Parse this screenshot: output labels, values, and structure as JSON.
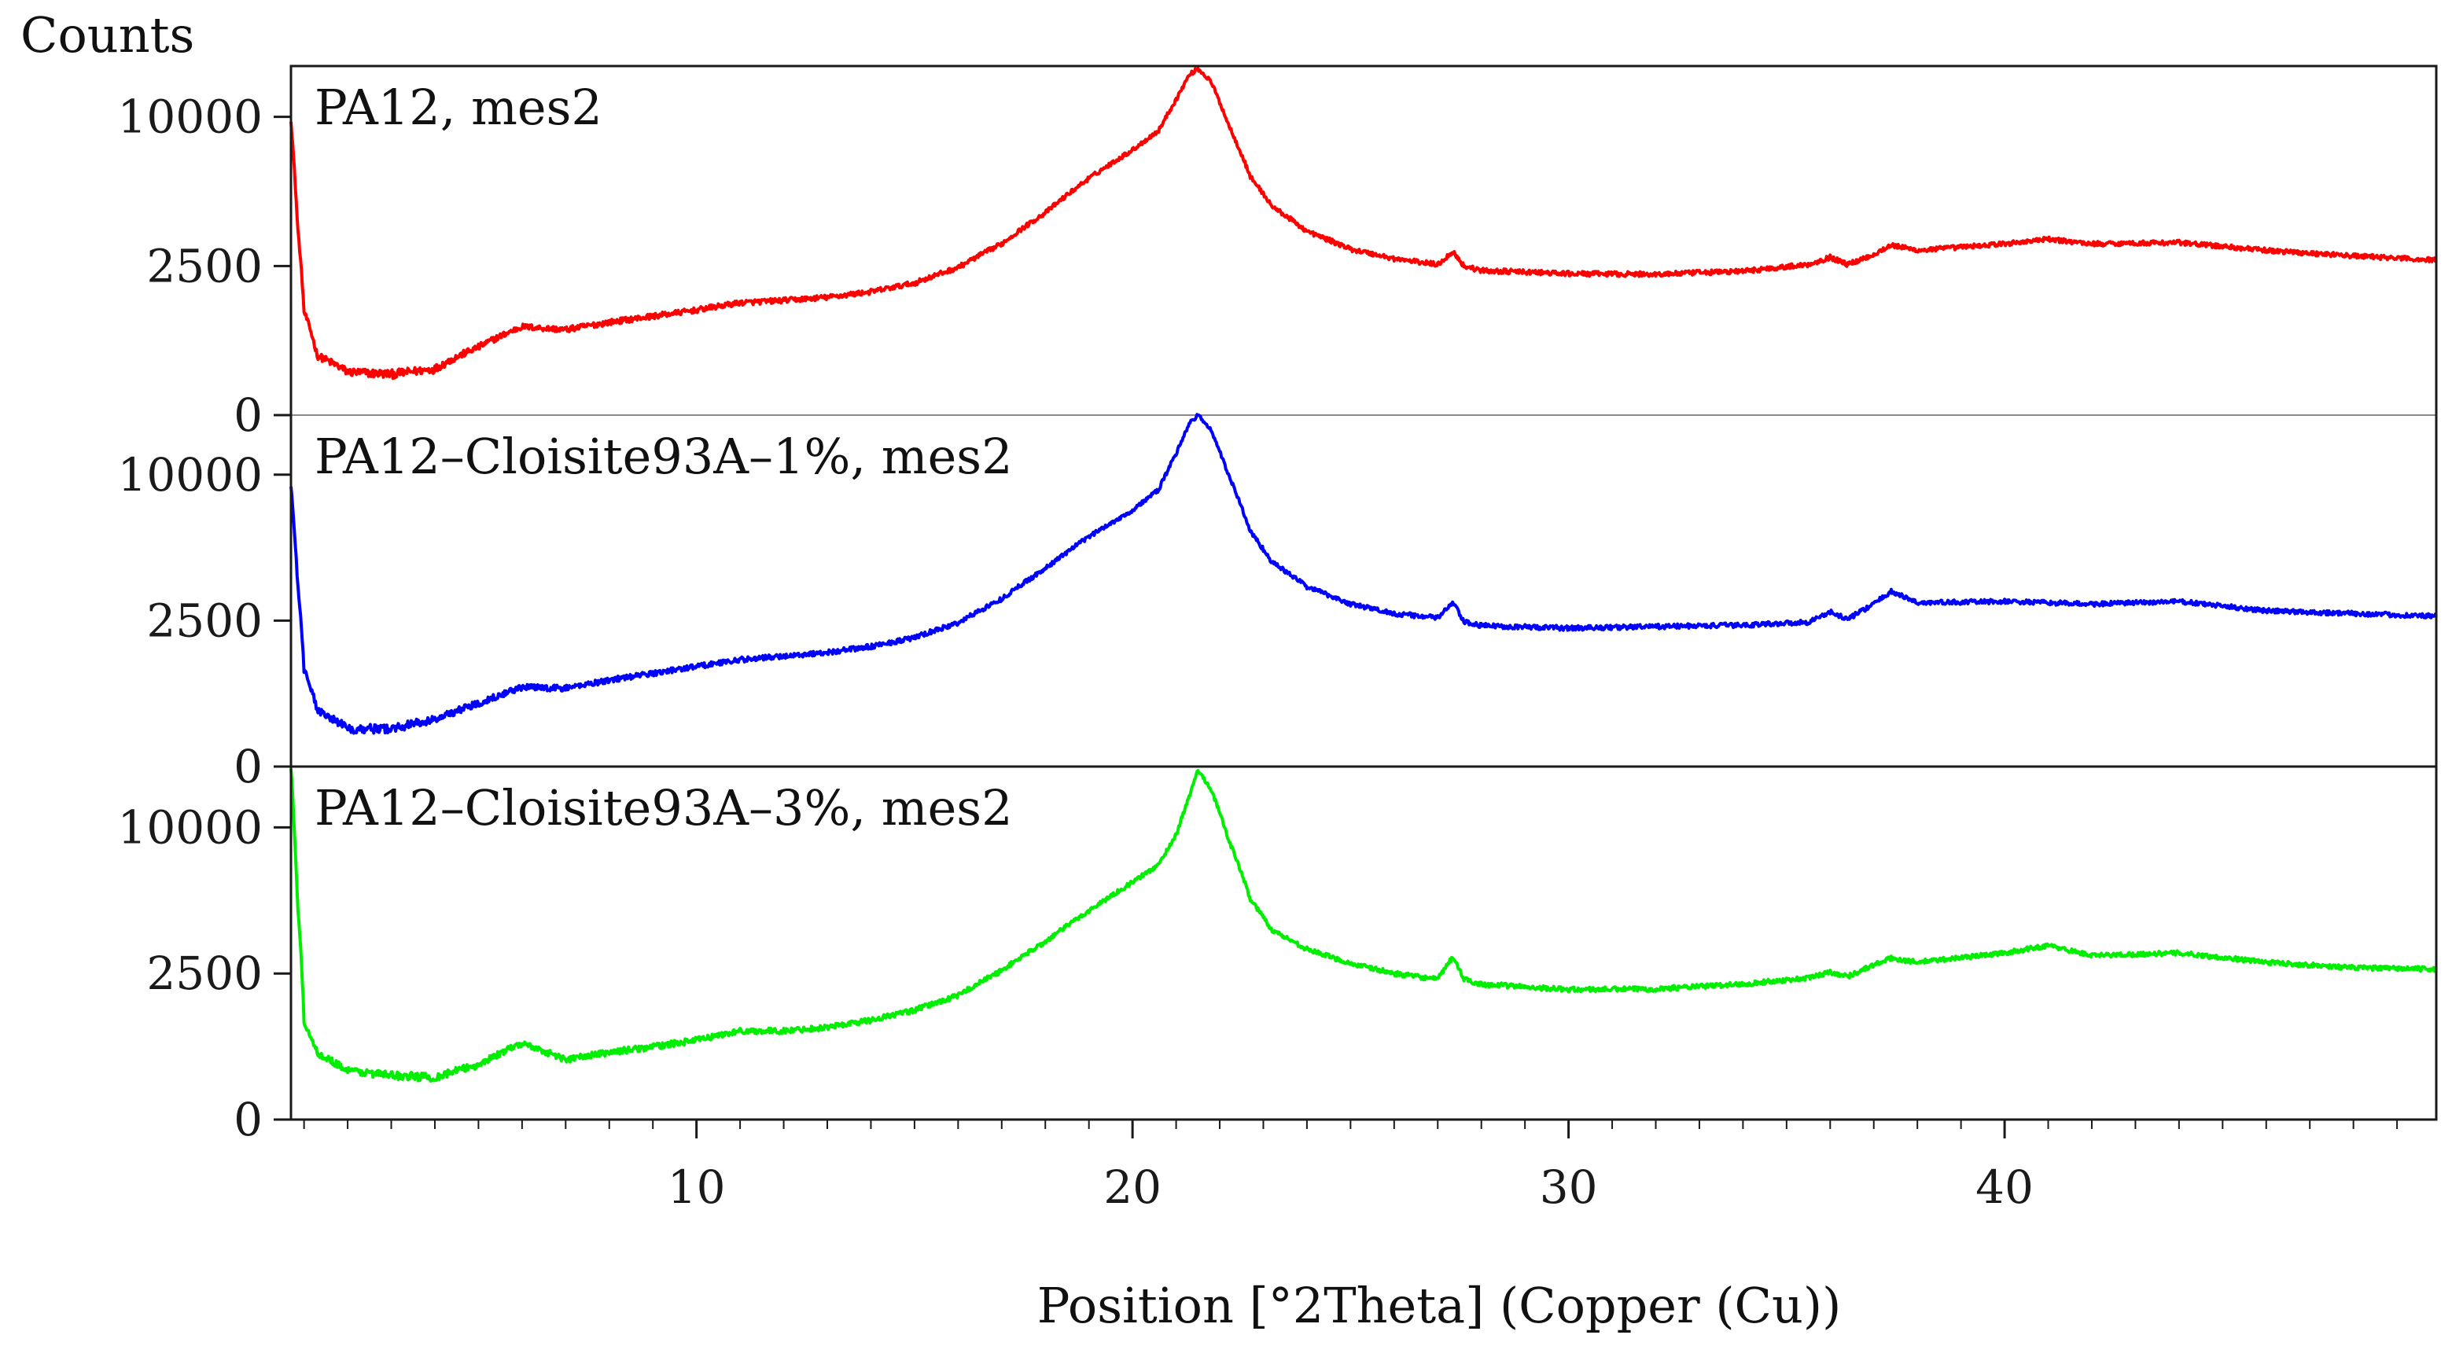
{
  "chart_data": {
    "type": "line",
    "y_axis_title": "Counts",
    "x_axis_title": "Position [°2Theta] (Copper (Cu))",
    "x_range": [
      0.7,
      49.9
    ],
    "x_ticks": [
      10,
      20,
      30,
      40
    ],
    "x_tick_labels": [
      "10",
      "20",
      "30",
      "40"
    ],
    "grid": false,
    "y_scale": "square-root",
    "panels": [
      {
        "label": "PA12, mes2",
        "color": "#ff0000",
        "y_range": [
          0,
          13700
        ],
        "y_ticks": [
          0,
          2500,
          10000
        ],
        "y_tick_labels": [
          "0",
          "2500",
          "10000"
        ],
        "profile": [
          [
            0.7,
            9800
          ],
          [
            0.85,
            4000
          ],
          [
            1.0,
            1200
          ],
          [
            1.3,
            400
          ],
          [
            2.0,
            210
          ],
          [
            3.0,
            190
          ],
          [
            4.0,
            240
          ],
          [
            5.0,
            520
          ],
          [
            6.0,
            880
          ],
          [
            7.0,
            820
          ],
          [
            8.0,
            970
          ],
          [
            9.0,
            1100
          ],
          [
            10.0,
            1240
          ],
          [
            11.0,
            1420
          ],
          [
            12.0,
            1480
          ],
          [
            13.0,
            1560
          ],
          [
            14.0,
            1710
          ],
          [
            15.0,
            1960
          ],
          [
            16.0,
            2450
          ],
          [
            17.0,
            3300
          ],
          [
            18.0,
            4600
          ],
          [
            19.0,
            6300
          ],
          [
            20.0,
            7900
          ],
          [
            20.6,
            9100
          ],
          [
            21.0,
            11200
          ],
          [
            21.3,
            13000
          ],
          [
            21.5,
            13500
          ],
          [
            21.8,
            12500
          ],
          [
            22.2,
            9500
          ],
          [
            22.7,
            6400
          ],
          [
            23.2,
            4900
          ],
          [
            24.0,
            3800
          ],
          [
            25.0,
            3100
          ],
          [
            26.0,
            2750
          ],
          [
            27.0,
            2550
          ],
          [
            27.35,
            3000
          ],
          [
            27.6,
            2500
          ],
          [
            28.0,
            2350
          ],
          [
            30.0,
            2250
          ],
          [
            32.0,
            2230
          ],
          [
            34.0,
            2330
          ],
          [
            35.5,
            2550
          ],
          [
            36.0,
            2800
          ],
          [
            36.4,
            2550
          ],
          [
            37.0,
            2900
          ],
          [
            37.4,
            3250
          ],
          [
            38.0,
            3050
          ],
          [
            40.0,
            3300
          ],
          [
            41.0,
            3480
          ],
          [
            42.0,
            3300
          ],
          [
            44.0,
            3350
          ],
          [
            46.0,
            3050
          ],
          [
            48.0,
            2850
          ],
          [
            49.9,
            2700
          ]
        ]
      },
      {
        "label": "PA12–Cloisite93A–1%, mes2",
        "color": "#0000ff",
        "y_range": [
          0,
          14500
        ],
        "y_ticks": [
          0,
          2500,
          10000
        ],
        "y_tick_labels": [
          "0",
          "2500",
          "10000"
        ],
        "profile": [
          [
            0.7,
            9300
          ],
          [
            0.85,
            4000
          ],
          [
            1.0,
            1100
          ],
          [
            1.3,
            380
          ],
          [
            2.0,
            170
          ],
          [
            3.0,
            170
          ],
          [
            4.0,
            260
          ],
          [
            5.0,
            470
          ],
          [
            6.0,
            740
          ],
          [
            7.0,
            720
          ],
          [
            8.0,
            880
          ],
          [
            9.0,
            1020
          ],
          [
            10.0,
            1180
          ],
          [
            11.0,
            1340
          ],
          [
            12.0,
            1430
          ],
          [
            13.0,
            1530
          ],
          [
            14.0,
            1690
          ],
          [
            15.0,
            1950
          ],
          [
            16.0,
            2420
          ],
          [
            17.0,
            3300
          ],
          [
            18.0,
            4600
          ],
          [
            19.0,
            6200
          ],
          [
            20.0,
            7700
          ],
          [
            20.6,
            9000
          ],
          [
            21.0,
            11500
          ],
          [
            21.3,
            13800
          ],
          [
            21.5,
            14500
          ],
          [
            21.8,
            13300
          ],
          [
            22.2,
            10000
          ],
          [
            22.7,
            6500
          ],
          [
            23.2,
            4900
          ],
          [
            24.0,
            3800
          ],
          [
            25.0,
            3100
          ],
          [
            26.0,
            2750
          ],
          [
            27.0,
            2600
          ],
          [
            27.35,
            3150
          ],
          [
            27.6,
            2450
          ],
          [
            28.0,
            2330
          ],
          [
            30.0,
            2250
          ],
          [
            32.0,
            2300
          ],
          [
            34.0,
            2350
          ],
          [
            35.5,
            2450
          ],
          [
            36.0,
            2800
          ],
          [
            36.4,
            2550
          ],
          [
            37.0,
            3100
          ],
          [
            37.4,
            3600
          ],
          [
            38.0,
            3150
          ],
          [
            40.0,
            3200
          ],
          [
            42.0,
            3100
          ],
          [
            44.0,
            3200
          ],
          [
            46.0,
            2850
          ],
          [
            48.0,
            2750
          ],
          [
            49.9,
            2650
          ]
        ]
      },
      {
        "label": "PA12–Cloisite93A–3%, mes2",
        "color": "#00ee00",
        "y_range": [
          0,
          14600
        ],
        "y_ticks": [
          0,
          2500,
          10000
        ],
        "y_tick_labels": [
          "0",
          "2500",
          "10000"
        ],
        "profile": [
          [
            0.7,
            14500
          ],
          [
            0.85,
            5500
          ],
          [
            1.0,
            1100
          ],
          [
            1.3,
            520
          ],
          [
            2.0,
            280
          ],
          [
            3.0,
            230
          ],
          [
            4.0,
            210
          ],
          [
            5.0,
            350
          ],
          [
            6.0,
            680
          ],
          [
            7.0,
            420
          ],
          [
            8.0,
            530
          ],
          [
            9.0,
            620
          ],
          [
            10.0,
            740
          ],
          [
            11.0,
            920
          ],
          [
            12.0,
            920
          ],
          [
            13.0,
            1000
          ],
          [
            14.0,
            1160
          ],
          [
            15.0,
            1400
          ],
          [
            16.0,
            1800
          ],
          [
            17.0,
            2600
          ],
          [
            18.0,
            3700
          ],
          [
            19.0,
            5100
          ],
          [
            20.0,
            6600
          ],
          [
            20.6,
            7600
          ],
          [
            21.0,
            9500
          ],
          [
            21.3,
            12200
          ],
          [
            21.5,
            14300
          ],
          [
            21.8,
            12800
          ],
          [
            22.2,
            9200
          ],
          [
            22.7,
            5700
          ],
          [
            23.2,
            4200
          ],
          [
            24.0,
            3400
          ],
          [
            25.0,
            2850
          ],
          [
            26.0,
            2500
          ],
          [
            27.0,
            2300
          ],
          [
            27.35,
            3100
          ],
          [
            27.6,
            2300
          ],
          [
            28.0,
            2150
          ],
          [
            30.0,
            1980
          ],
          [
            32.0,
            2000
          ],
          [
            34.0,
            2150
          ],
          [
            35.5,
            2350
          ],
          [
            36.0,
            2550
          ],
          [
            36.4,
            2400
          ],
          [
            37.0,
            2800
          ],
          [
            37.4,
            3050
          ],
          [
            38.0,
            2900
          ],
          [
            40.0,
            3250
          ],
          [
            41.0,
            3550
          ],
          [
            42.0,
            3150
          ],
          [
            44.0,
            3250
          ],
          [
            46.0,
            2900
          ],
          [
            48.0,
            2700
          ],
          [
            49.9,
            2650
          ]
        ]
      }
    ]
  }
}
